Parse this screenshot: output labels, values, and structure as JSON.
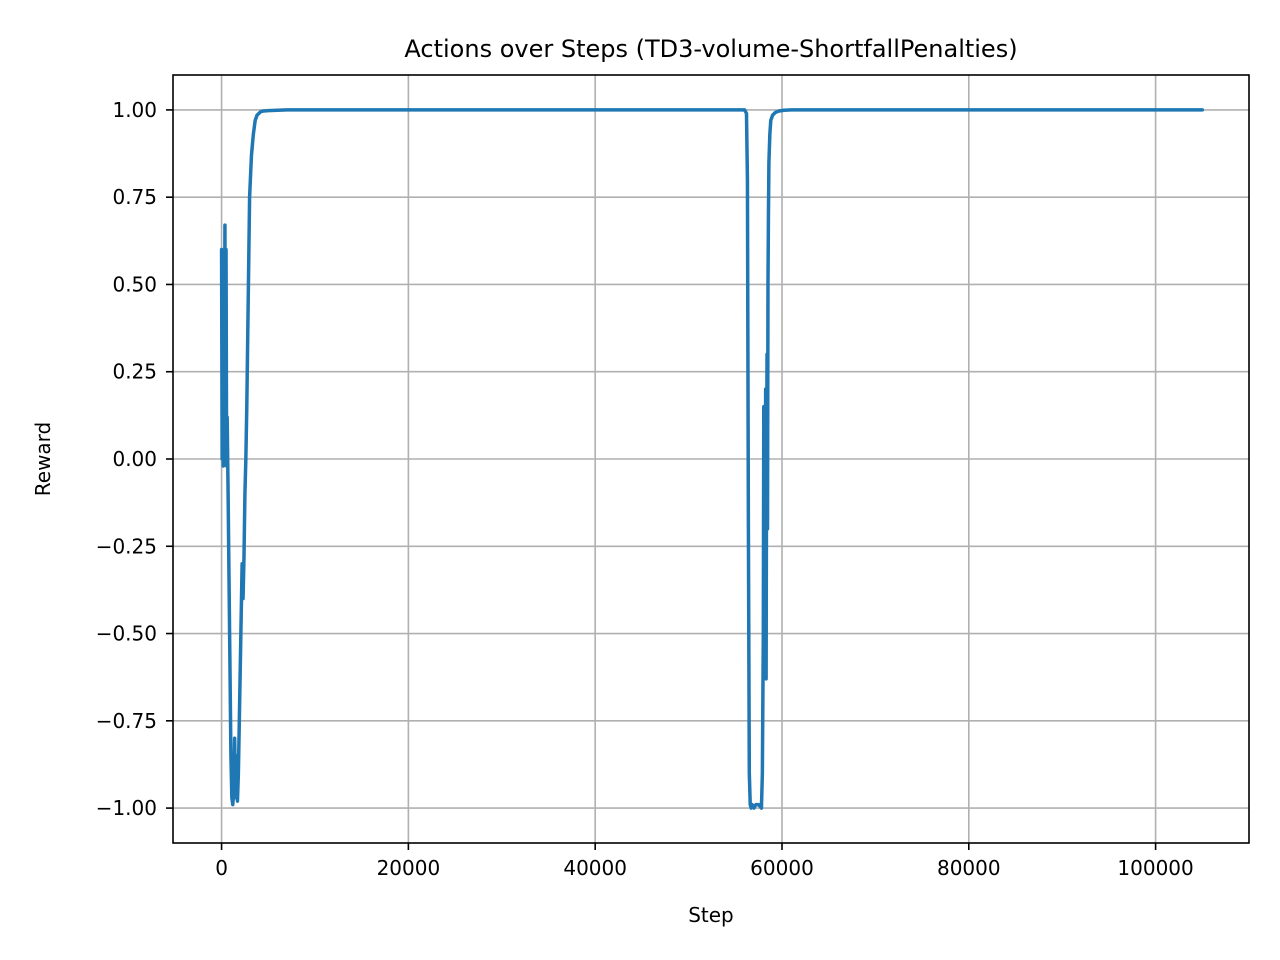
{
  "chart_data": {
    "type": "line",
    "title": "Actions over Steps (TD3-volume-ShortfallPenalties)",
    "xlabel": "Step",
    "ylabel": "Reward",
    "xlim": [
      -5200,
      110000
    ],
    "ylim": [
      -1.1,
      1.1
    ],
    "grid": true,
    "legend": "none",
    "xticks": [
      0,
      20000,
      40000,
      60000,
      80000,
      100000
    ],
    "xtick_labels": [
      "0",
      "20000",
      "40000",
      "60000",
      "80000",
      "100000"
    ],
    "yticks": [
      1.0,
      0.75,
      0.5,
      0.25,
      0.0,
      -0.25,
      -0.5,
      -0.75,
      -1.0
    ],
    "ytick_labels": [
      "1.00",
      "0.75",
      "0.50",
      "0.25",
      "0.00",
      "−0.25",
      "−0.50",
      "−0.75",
      "−1.00"
    ],
    "series": [
      {
        "color": "#1f77b4",
        "x": [
          0,
          60,
          120,
          180,
          240,
          300,
          360,
          420,
          480,
          540,
          600,
          700,
          800,
          900,
          1000,
          1100,
          1200,
          1300,
          1400,
          1500,
          1600,
          1700,
          1800,
          1900,
          2000,
          2100,
          2200,
          2300,
          2400,
          2500,
          2600,
          2700,
          2800,
          2900,
          3000,
          3200,
          3400,
          3600,
          3800,
          4000,
          4200,
          4500,
          5000,
          6000,
          7000,
          8000,
          10000,
          20000,
          30000,
          40000,
          50000,
          56000,
          56200,
          56300,
          56400,
          56500,
          56600,
          56700,
          56800,
          57000,
          57200,
          57500,
          57800,
          57900,
          58000,
          58050,
          58100,
          58150,
          58200,
          58250,
          58300,
          58350,
          58400,
          58450,
          58500,
          58550,
          58600,
          58700,
          58800,
          59000,
          59300,
          59700,
          60200,
          61000,
          70000,
          80000,
          90000,
          100000,
          105000
        ],
        "y": [
          0.6,
          0.0,
          0.55,
          -0.02,
          0.58,
          0.1,
          0.67,
          0.05,
          0.6,
          -0.02,
          0.12,
          -0.1,
          -0.35,
          -0.6,
          -0.85,
          -0.97,
          -0.99,
          -0.95,
          -0.8,
          -0.97,
          -0.85,
          -0.98,
          -0.9,
          -0.75,
          -0.6,
          -0.45,
          -0.3,
          -0.4,
          -0.28,
          -0.1,
          0.0,
          0.15,
          0.35,
          0.55,
          0.75,
          0.87,
          0.93,
          0.97,
          0.985,
          0.99,
          0.995,
          0.997,
          0.998,
          0.999,
          1.0,
          1.0,
          1.0,
          1.0,
          1.0,
          1.0,
          1.0,
          1.0,
          0.99,
          0.8,
          -0.17,
          -0.9,
          -0.99,
          -1.0,
          -0.99,
          -1.0,
          -0.99,
          -0.99,
          -1.0,
          -0.9,
          -0.5,
          0.15,
          -0.6,
          0.1,
          -0.4,
          0.2,
          -0.63,
          0.0,
          0.3,
          -0.2,
          0.5,
          0.7,
          0.85,
          0.93,
          0.97,
          0.985,
          0.993,
          0.997,
          0.999,
          1.0,
          1.0,
          1.0,
          1.0,
          1.0,
          1.0
        ]
      }
    ]
  }
}
